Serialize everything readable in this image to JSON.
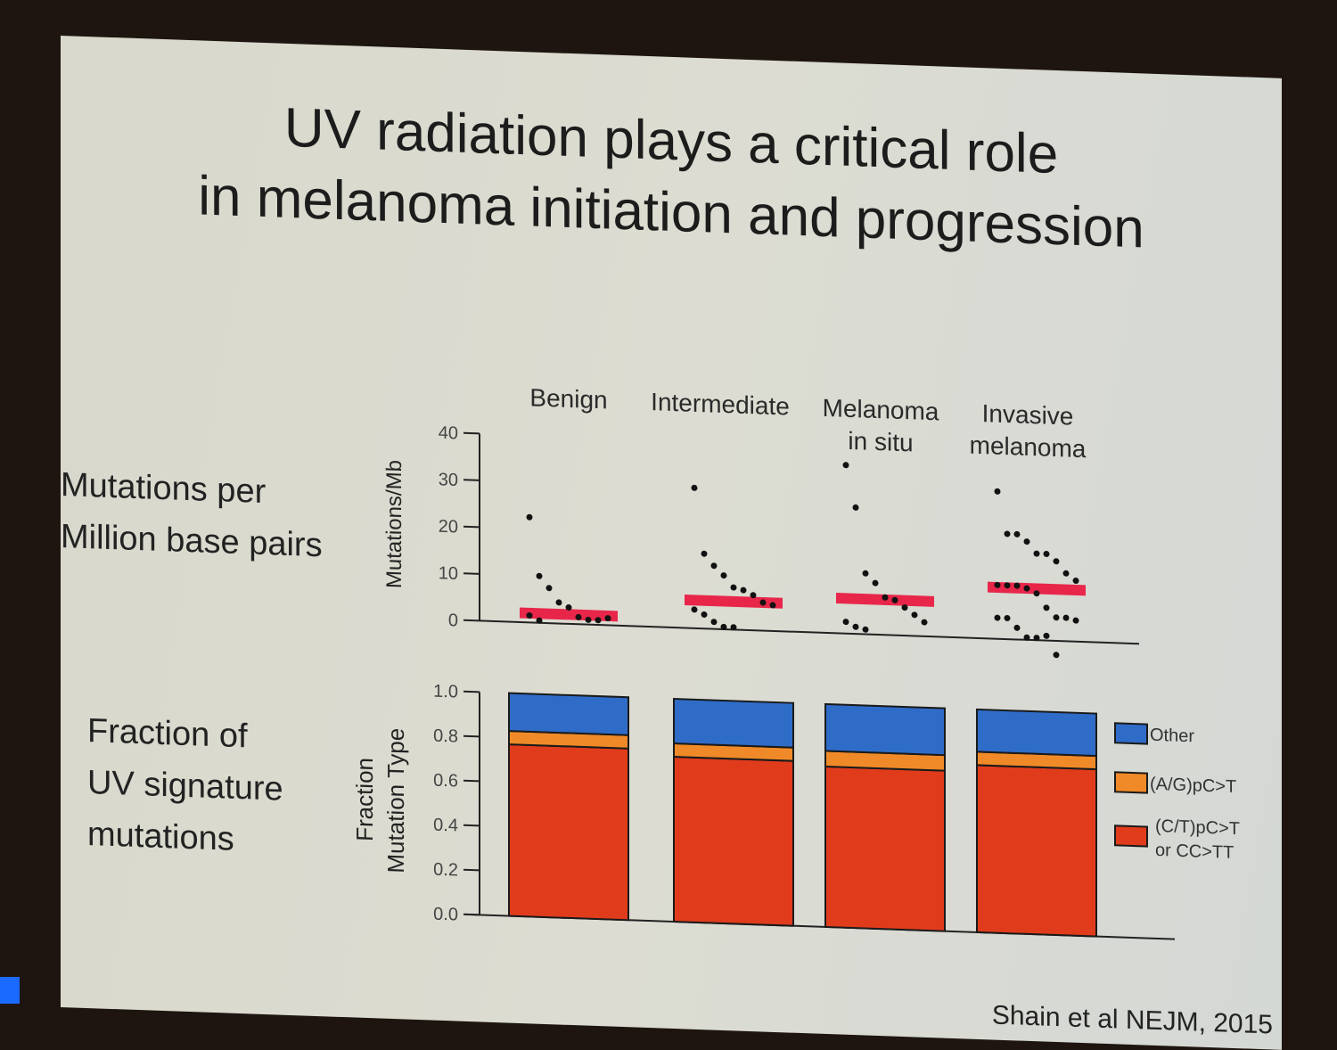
{
  "slide": {
    "title_line1": "UV radiation plays a critical role",
    "title_line2": "in melanoma initiation and progression",
    "left_label_top": [
      "Mutations per",
      "Million base pairs"
    ],
    "left_label_bottom": [
      "Fraction of",
      "UV signature",
      "mutations"
    ],
    "citation": "Shain et al NEJM, 2015"
  },
  "chart_data": [
    {
      "type": "scatter",
      "title": "Mutations per Million base pairs",
      "ylabel": "Mutations/Mb",
      "ylim": [
        0,
        40
      ],
      "yticks": [
        0,
        10,
        20,
        30,
        40
      ],
      "categories": [
        "Benign",
        "Intermediate",
        "Melanoma in situ",
        "Invasive melanoma"
      ],
      "medians": [
        2,
        6,
        7.5,
        11
      ],
      "points": [
        [
          22.5,
          10,
          7.5,
          4.5,
          3.5,
          1.5,
          1,
          1,
          1.5,
          1.5,
          0.5
        ],
        [
          30,
          16,
          13.5,
          11.5,
          9,
          8.5,
          7.5,
          6,
          5.5,
          4,
          3,
          1.5,
          0.5,
          0.5
        ],
        [
          36,
          27,
          13,
          11,
          8,
          7.5,
          6,
          4.5,
          3,
          2.5,
          1.5,
          1
        ],
        [
          31.5,
          22.5,
          22.5,
          21,
          18.5,
          18.5,
          17,
          14.5,
          13,
          11.5,
          11.5,
          11.5,
          11,
          10,
          7,
          5,
          5,
          4.5,
          4.5,
          4.5,
          2.5,
          0.5,
          0.5,
          1,
          -3
        ]
      ],
      "median_color": "#e8264a",
      "grid": false
    },
    {
      "type": "bar",
      "stacked": true,
      "title": "Fraction of UV signature mutations",
      "ylabel": "Fraction Mutation Type",
      "ylim": [
        0,
        1.0
      ],
      "yticks": [
        0.0,
        0.2,
        0.4,
        0.6,
        0.8,
        1.0
      ],
      "categories": [
        "Benign",
        "Intermediate",
        "Melanoma in situ",
        "Invasive melanoma"
      ],
      "series": [
        {
          "name": "(C/T)pC>T or CC>TT",
          "color": "#e03c1c",
          "values": [
            0.77,
            0.74,
            0.72,
            0.75
          ]
        },
        {
          "name": "(A/G)pC>T",
          "color": "#f08a28",
          "values": [
            0.06,
            0.06,
            0.07,
            0.06
          ]
        },
        {
          "name": "Other",
          "color": "#2f6cc8",
          "values": [
            0.17,
            0.2,
            0.21,
            0.19
          ]
        }
      ],
      "legend_position": "right",
      "legend": [
        "Other",
        "(A/G)pC>T",
        "(C/T)pC>T or CC>TT"
      ]
    }
  ]
}
